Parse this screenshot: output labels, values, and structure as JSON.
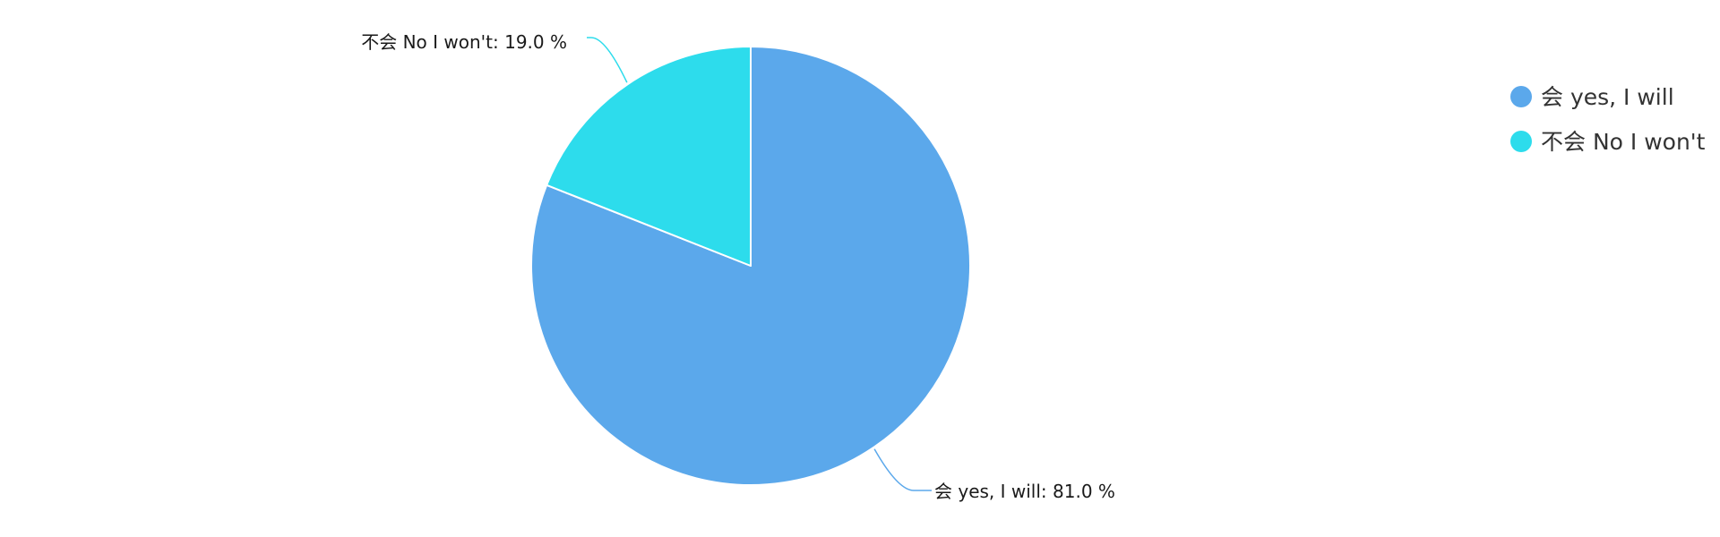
{
  "chart_data": {
    "type": "pie",
    "title": "",
    "legend_position": "top-right",
    "slices": [
      {
        "label": "会 yes, I will",
        "value": 81.0,
        "percent_label": "81.0 %",
        "color": "#5ba8eb"
      },
      {
        "label": "不会 No I won't",
        "value": 19.0,
        "percent_label": "19.0 %",
        "color": "#2ddcec"
      }
    ]
  }
}
